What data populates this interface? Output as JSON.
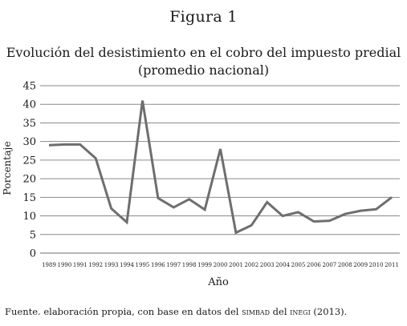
{
  "figure_label": "Figura 1",
  "chart_data": {
    "type": "line",
    "title_line1": "Evolución del desistimiento en el cobro del impuesto predial",
    "title_line2": "(promedio nacional)",
    "xlabel": "Año",
    "ylabel": "Porcentaje",
    "ylim": [
      0,
      45
    ],
    "yticks": [
      0,
      5,
      10,
      15,
      20,
      25,
      30,
      35,
      40,
      45
    ],
    "grid": true,
    "x": [
      "1989",
      "1990",
      "1991",
      "1992",
      "1993",
      "1994",
      "1995",
      "1996",
      "1997",
      "1998",
      "1999",
      "2000",
      "2001",
      "2002",
      "2003",
      "2004",
      "2005",
      "2006",
      "2007",
      "2008",
      "2009",
      "2010",
      "2011"
    ],
    "series": [
      {
        "values": [
          29.0,
          29.2,
          29.2,
          25.5,
          12.0,
          8.3,
          41.0,
          14.8,
          12.3,
          14.5,
          11.7,
          28.0,
          5.5,
          7.5,
          13.7,
          10.0,
          11.0,
          8.5,
          8.7,
          10.5,
          11.4,
          11.8,
          15.0
        ],
        "color": "#6e6e6e"
      }
    ]
  },
  "source": {
    "prefix": "Fuente. elaboración propia, con base en datos del ",
    "simbad": "SIMBAD",
    "middle": " del ",
    "inegi": "INEGI",
    "suffix": " (2013)."
  }
}
